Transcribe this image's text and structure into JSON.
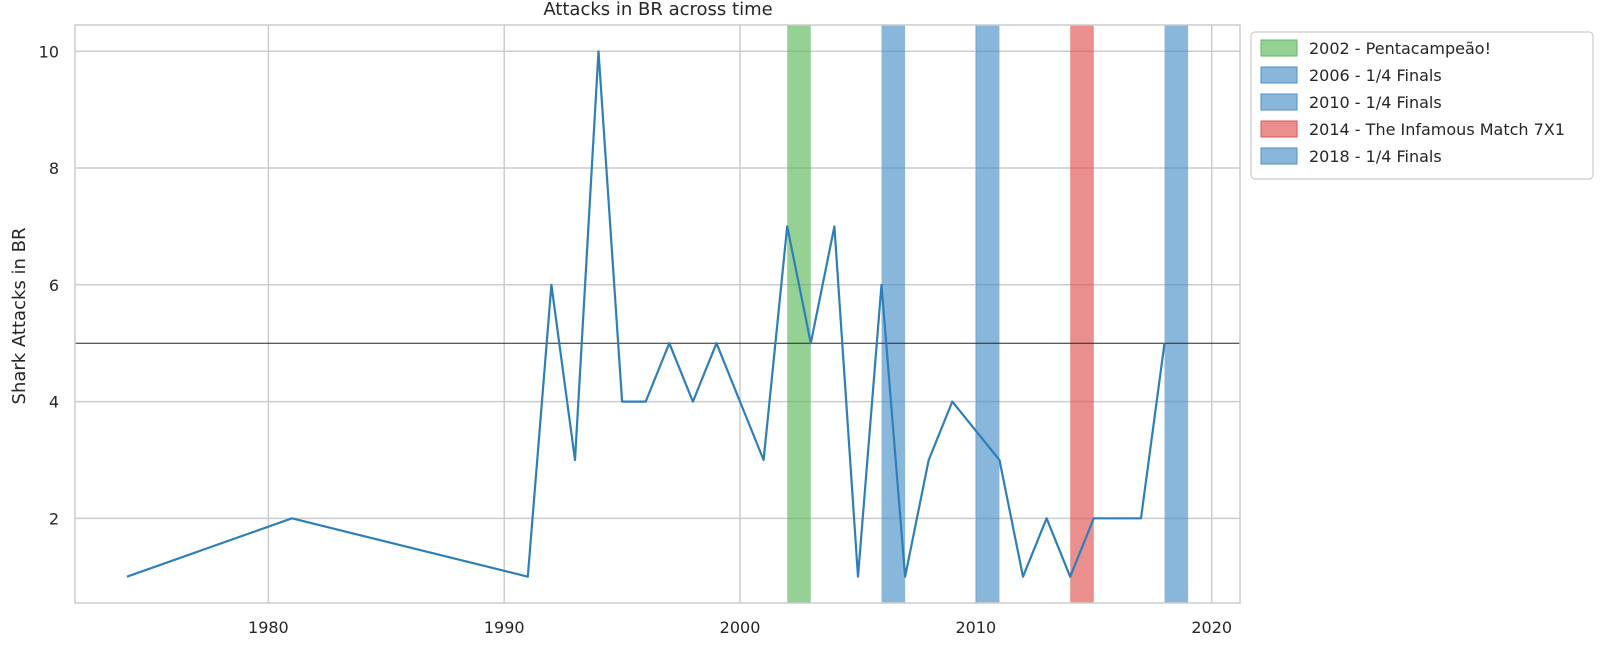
{
  "chart_data": {
    "type": "line",
    "title": "Attacks in BR across time",
    "xlabel": "",
    "ylabel": "Shark Attacks in BR",
    "xlim": [
      1971.8,
      2021.2
    ],
    "ylim": [
      0.55,
      10.45
    ],
    "xticks": [
      1980,
      1990,
      2000,
      2010,
      2020
    ],
    "yticks": [
      2,
      4,
      6,
      8,
      10
    ],
    "grid": true,
    "legend_position": "outside-top-right",
    "series": [
      {
        "color": "#2e7fb8",
        "x": [
          1974,
          1981,
          1991,
          1992,
          1993,
          1994,
          1995,
          1996,
          1997,
          1998,
          1999,
          2000,
          2001,
          2002,
          2003,
          2004,
          2005,
          2006,
          2007,
          2008,
          2009,
          2010,
          2011,
          2012,
          2013,
          2014,
          2015,
          2016,
          2017,
          2018
        ],
        "y": [
          1,
          2,
          1,
          6,
          3,
          10,
          4,
          4,
          5,
          4,
          5,
          4,
          3,
          7,
          5,
          7,
          1,
          6,
          1,
          3,
          4,
          3.5,
          3,
          1,
          2,
          1,
          2,
          2,
          2,
          5
        ]
      }
    ],
    "hline": {
      "y": 5,
      "color": "#262626"
    },
    "spans": [
      {
        "x0": 2002,
        "x1": 2003,
        "label": "2002 - Pentacampeão!",
        "color": "#5cb85c"
      },
      {
        "x0": 2006,
        "x1": 2007,
        "label": "2006 - 1/4 Finals",
        "color": "#4a90c8"
      },
      {
        "x0": 2010,
        "x1": 2011,
        "label": "2010 - 1/4 Finals",
        "color": "#4a90c8"
      },
      {
        "x0": 2014,
        "x1": 2015,
        "label": "2014 - The Infamous Match 7X1",
        "color": "#e05252"
      },
      {
        "x0": 2018,
        "x1": 2019,
        "label": "2018 - 1/4 Finals",
        "color": "#4a90c8"
      }
    ]
  }
}
